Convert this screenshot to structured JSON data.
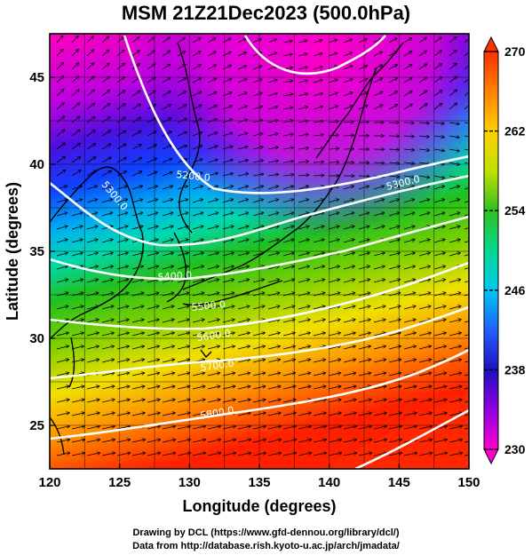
{
  "title": "MSM 21Z21Dec2023 (500.0hPa)",
  "axes": {
    "xlabel": "Longitude (degrees)",
    "ylabel": "Latitude  (degrees)",
    "xticks": [
      "120",
      "125",
      "130",
      "135",
      "140",
      "145",
      "150"
    ],
    "yticks": [
      "45",
      "40",
      "35",
      "30",
      "25"
    ]
  },
  "colorbar": {
    "labels": [
      "270",
      "262",
      "254",
      "246",
      "238",
      "230"
    ],
    "min": 230,
    "max": 270
  },
  "contour_labels": [
    "5200.0",
    "5300.0",
    "5300.0",
    "5400.0",
    "5500.0",
    "5600.0",
    "5700.0",
    "5800.0"
  ],
  "chart_data": {
    "type": "heatmap",
    "title": "MSM 21Z21Dec2023 (500.0hPa)",
    "xlabel": "Longitude (degrees)",
    "ylabel": "Latitude  (degrees)",
    "xlim": [
      120,
      150
    ],
    "ylim": [
      22.5,
      47.5
    ],
    "colorbar_range": [
      230,
      270
    ],
    "contour_levels": [
      5200,
      5300,
      5400,
      5500,
      5600,
      5700,
      5800
    ],
    "layers": [
      "temperature shading",
      "geopotential height contours",
      "wind vectors",
      "coastlines",
      "grid"
    ]
  },
  "footer": {
    "line1": "Drawing by DCL (https://www.gfd-dennou.org/library/dcl/)",
    "line2": "Data from http://database.rish.kyoto-u.ac.jp/arch/jmadata/"
  },
  "colors": {
    "magenta": "#ff00c0",
    "purple": "#8a00d0",
    "blue": "#1840ff",
    "cyan": "#00d8e8",
    "green": "#20c020",
    "yellow": "#f0e000",
    "orange": "#ff8000",
    "red": "#ff2000"
  }
}
